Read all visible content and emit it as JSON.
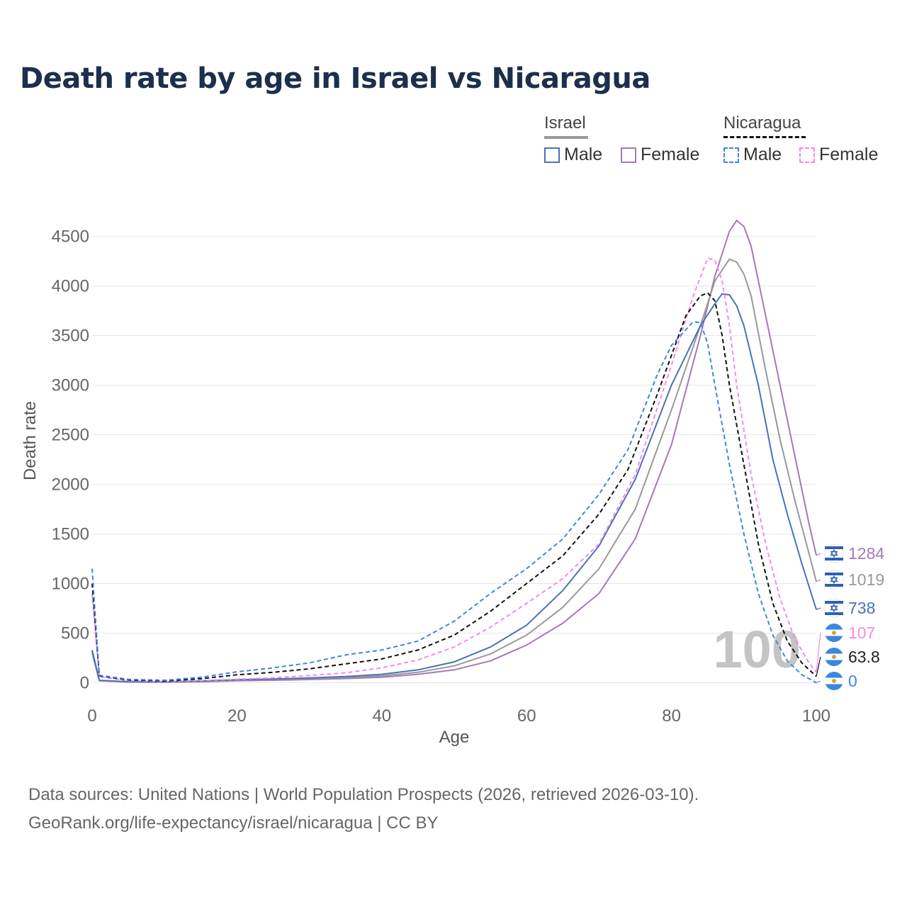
{
  "title": "Death rate by age in Israel vs Nicaragua",
  "legend": {
    "groups": [
      {
        "name": "Israel",
        "items": [
          {
            "label": "Male",
            "color": "#4a72b8",
            "dash": false
          },
          {
            "label": "Female",
            "color": "#a678b4",
            "dash": false
          }
        ],
        "group_color": "#999999",
        "group_dash": false
      },
      {
        "name": "Nicaragua",
        "items": [
          {
            "label": "Male",
            "color": "#3d86e6",
            "dash": true
          },
          {
            "label": "Female",
            "color": "#f48ae6",
            "dash": true
          }
        ],
        "group_color": "#111111",
        "group_dash": true
      }
    ]
  },
  "footer": {
    "line1": "Data sources: United Nations | World Population Prospects (2026, retrieved 2026-03-10).",
    "line2": "GeoRank.org/life-expectancy/israel/nicaragua | CC BY"
  },
  "chart_data": {
    "type": "line",
    "title": "Death rate by age in Israel vs Nicaragua",
    "xlabel": "Age",
    "ylabel": "Death rate",
    "xlim": [
      0,
      100
    ],
    "ylim": [
      0,
      4700
    ],
    "xticks": [
      0,
      20,
      40,
      60,
      80,
      100
    ],
    "yticks": [
      0,
      500,
      1000,
      1500,
      2000,
      2500,
      3000,
      3500,
      4000,
      4500
    ],
    "grid": true,
    "watermark": "100",
    "series": [
      {
        "name": "Israel Female",
        "country": "Israel",
        "sex": "Female",
        "color": "#a678b4",
        "dash": false,
        "end_label": "1284",
        "points": [
          [
            0,
            300
          ],
          [
            1,
            20
          ],
          [
            5,
            8
          ],
          [
            10,
            6
          ],
          [
            15,
            10
          ],
          [
            20,
            20
          ],
          [
            25,
            25
          ],
          [
            30,
            32
          ],
          [
            35,
            42
          ],
          [
            40,
            55
          ],
          [
            45,
            85
          ],
          [
            50,
            130
          ],
          [
            55,
            220
          ],
          [
            60,
            380
          ],
          [
            65,
            600
          ],
          [
            70,
            900
          ],
          [
            75,
            1450
          ],
          [
            80,
            2400
          ],
          [
            84,
            3500
          ],
          [
            86,
            4100
          ],
          [
            88,
            4550
          ],
          [
            89,
            4660
          ],
          [
            90,
            4600
          ],
          [
            91,
            4400
          ],
          [
            93,
            3700
          ],
          [
            95,
            3000
          ],
          [
            97,
            2300
          ],
          [
            99,
            1600
          ],
          [
            100,
            1284
          ]
        ]
      },
      {
        "name": "Israel Total",
        "country": "Israel",
        "sex": "Total",
        "color": "#999999",
        "dash": false,
        "end_label": "1019",
        "points": [
          [
            0,
            320
          ],
          [
            1,
            22
          ],
          [
            5,
            9
          ],
          [
            10,
            7
          ],
          [
            15,
            14
          ],
          [
            20,
            25
          ],
          [
            25,
            32
          ],
          [
            30,
            40
          ],
          [
            35,
            52
          ],
          [
            40,
            70
          ],
          [
            45,
            105
          ],
          [
            50,
            170
          ],
          [
            55,
            290
          ],
          [
            60,
            480
          ],
          [
            65,
            760
          ],
          [
            70,
            1150
          ],
          [
            75,
            1750
          ],
          [
            80,
            2750
          ],
          [
            84,
            3600
          ],
          [
            86,
            4050
          ],
          [
            88,
            4270
          ],
          [
            89,
            4240
          ],
          [
            90,
            4120
          ],
          [
            91,
            3900
          ],
          [
            93,
            3150
          ],
          [
            95,
            2450
          ],
          [
            97,
            1850
          ],
          [
            99,
            1300
          ],
          [
            100,
            1019
          ]
        ]
      },
      {
        "name": "Israel Male",
        "country": "Israel",
        "sex": "Male",
        "color": "#4a72b8",
        "dash": false,
        "end_label": "738",
        "points": [
          [
            0,
            330
          ],
          [
            1,
            24
          ],
          [
            5,
            10
          ],
          [
            10,
            8
          ],
          [
            15,
            18
          ],
          [
            20,
            30
          ],
          [
            25,
            38
          ],
          [
            30,
            48
          ],
          [
            35,
            62
          ],
          [
            40,
            85
          ],
          [
            45,
            130
          ],
          [
            50,
            210
          ],
          [
            55,
            360
          ],
          [
            60,
            580
          ],
          [
            65,
            930
          ],
          [
            70,
            1380
          ],
          [
            75,
            2050
          ],
          [
            80,
            3000
          ],
          [
            84,
            3600
          ],
          [
            86,
            3820
          ],
          [
            87,
            3920
          ],
          [
            88,
            3910
          ],
          [
            89,
            3800
          ],
          [
            90,
            3600
          ],
          [
            92,
            3000
          ],
          [
            94,
            2250
          ],
          [
            96,
            1700
          ],
          [
            98,
            1200
          ],
          [
            100,
            738
          ]
        ]
      },
      {
        "name": "Nicaragua Female",
        "country": "Nicaragua",
        "sex": "Female",
        "color": "#f48ae6",
        "dash": true,
        "end_label": "107",
        "points": [
          [
            0,
            900
          ],
          [
            1,
            60
          ],
          [
            5,
            20
          ],
          [
            10,
            12
          ],
          [
            15,
            22
          ],
          [
            20,
            35
          ],
          [
            25,
            50
          ],
          [
            30,
            72
          ],
          [
            35,
            100
          ],
          [
            40,
            150
          ],
          [
            45,
            230
          ],
          [
            50,
            360
          ],
          [
            55,
            560
          ],
          [
            60,
            800
          ],
          [
            65,
            1050
          ],
          [
            70,
            1400
          ],
          [
            75,
            2100
          ],
          [
            80,
            3200
          ],
          [
            83,
            3900
          ],
          [
            85,
            4280
          ],
          [
            86,
            4260
          ],
          [
            87,
            4050
          ],
          [
            88,
            3600
          ],
          [
            89,
            3000
          ],
          [
            91,
            2100
          ],
          [
            93,
            1400
          ],
          [
            95,
            850
          ],
          [
            97,
            450
          ],
          [
            99,
            200
          ],
          [
            100,
            107
          ]
        ]
      },
      {
        "name": "Nicaragua Total",
        "country": "Nicaragua",
        "sex": "Total",
        "color": "#111111",
        "dash": true,
        "end_label": "63.8",
        "points": [
          [
            0,
            1000
          ],
          [
            1,
            70
          ],
          [
            5,
            28
          ],
          [
            10,
            18
          ],
          [
            15,
            40
          ],
          [
            20,
            80
          ],
          [
            25,
            105
          ],
          [
            30,
            140
          ],
          [
            35,
            190
          ],
          [
            40,
            240
          ],
          [
            45,
            330
          ],
          [
            50,
            480
          ],
          [
            55,
            720
          ],
          [
            60,
            1000
          ],
          [
            65,
            1280
          ],
          [
            70,
            1700
          ],
          [
            74,
            2150
          ],
          [
            78,
            2900
          ],
          [
            82,
            3700
          ],
          [
            84,
            3900
          ],
          [
            85,
            3930
          ],
          [
            86,
            3850
          ],
          [
            87,
            3500
          ],
          [
            88,
            3000
          ],
          [
            90,
            2200
          ],
          [
            92,
            1400
          ],
          [
            94,
            800
          ],
          [
            96,
            420
          ],
          [
            98,
            200
          ],
          [
            100,
            63.8
          ]
        ]
      },
      {
        "name": "Nicaragua Male",
        "country": "Nicaragua",
        "sex": "Male",
        "color": "#3d86e6",
        "dash": true,
        "end_label": "0",
        "points": [
          [
            0,
            1150
          ],
          [
            1,
            75
          ],
          [
            5,
            35
          ],
          [
            10,
            25
          ],
          [
            15,
            55
          ],
          [
            20,
            110
          ],
          [
            25,
            150
          ],
          [
            30,
            200
          ],
          [
            35,
            280
          ],
          [
            40,
            330
          ],
          [
            45,
            420
          ],
          [
            50,
            620
          ],
          [
            55,
            900
          ],
          [
            60,
            1150
          ],
          [
            65,
            1450
          ],
          [
            70,
            1900
          ],
          [
            74,
            2350
          ],
          [
            78,
            3100
          ],
          [
            80,
            3400
          ],
          [
            83,
            3640
          ],
          [
            84,
            3630
          ],
          [
            85,
            3420
          ],
          [
            86,
            3000
          ],
          [
            88,
            2200
          ],
          [
            90,
            1500
          ],
          [
            92,
            900
          ],
          [
            94,
            480
          ],
          [
            96,
            220
          ],
          [
            98,
            80
          ],
          [
            100,
            0
          ]
        ]
      }
    ]
  }
}
